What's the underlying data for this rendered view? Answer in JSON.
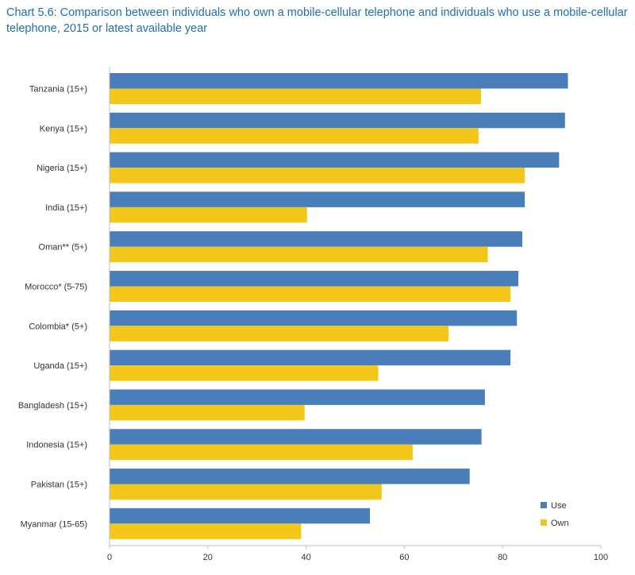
{
  "chart_data": {
    "type": "bar",
    "orientation": "horizontal",
    "title_label": "Chart 5.6:",
    "title": "Comparison between individuals who own a mobile-cellular telephone and individuals who use a mobile-cellular telephone, 2015 or latest available year",
    "categories": [
      "Tanzania (15+)",
      "Kenya (15+)",
      "Nigeria (15+)",
      "India (15+)",
      "Oman** (5+)",
      "Morocco* (5-75)",
      "Colombia* (5+)",
      "Uganda (15+)",
      "Bangladesh (15+)",
      "Indonesia (15+)",
      "Pakistan (15+)",
      "Myanmar (15-65)"
    ],
    "series": [
      {
        "name": "Use",
        "color": "#4a7ebb",
        "values": [
          93.3,
          92.7,
          91.5,
          84.5,
          84.0,
          83.2,
          82.9,
          81.6,
          76.4,
          75.7,
          73.3,
          53.0
        ]
      },
      {
        "name": "Own",
        "color": "#f2c719",
        "values": [
          75.6,
          75.1,
          84.5,
          40.2,
          77.0,
          81.6,
          69.0,
          54.7,
          39.7,
          61.7,
          55.4,
          39.0
        ]
      }
    ],
    "xlim": [
      0,
      100
    ],
    "xticks": [
      "0",
      "20",
      "40",
      "60",
      "80",
      "100"
    ],
    "xticks_values": [
      0,
      20,
      40,
      60,
      80,
      100
    ],
    "legend_position": "bottom-right",
    "grid": false
  }
}
